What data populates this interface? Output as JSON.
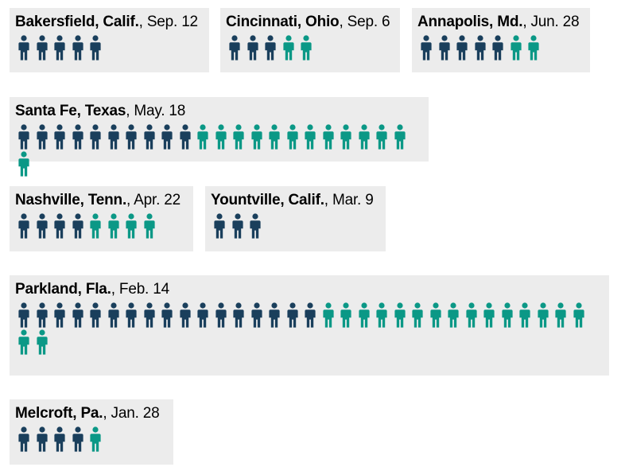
{
  "colors": {
    "killed": "#1a3f5c",
    "injured": "#0b9886",
    "card_bg": "#ececec"
  },
  "chart_data": {
    "type": "pictogram",
    "series": [],
    "cards": [
      {
        "place": "Bakersfield, Calif.",
        "date": "Sep. 12",
        "killed": 5,
        "injured": 0
      },
      {
        "place": "Cincinnati, Ohio",
        "date": "Sep. 6",
        "killed": 3,
        "injured": 2
      },
      {
        "place": "Annapolis, Md.",
        "date": "Jun. 28",
        "killed": 5,
        "injured": 2
      },
      {
        "place": "Santa Fe, Texas",
        "date": "May. 18",
        "killed": 10,
        "injured": 13
      },
      {
        "place": "Nashville, Tenn.",
        "date": "Apr. 22",
        "killed": 4,
        "injured": 4
      },
      {
        "place": "Yountville, Calif.",
        "date": "Mar. 9",
        "killed": 3,
        "injured": 0
      },
      {
        "place": "Parkland, Fla.",
        "date": "Feb. 14",
        "killed": 17,
        "injured": 17
      },
      {
        "place": "Melcroft, Pa.",
        "date": "Jan. 28",
        "killed": 4,
        "injured": 1
      }
    ]
  }
}
